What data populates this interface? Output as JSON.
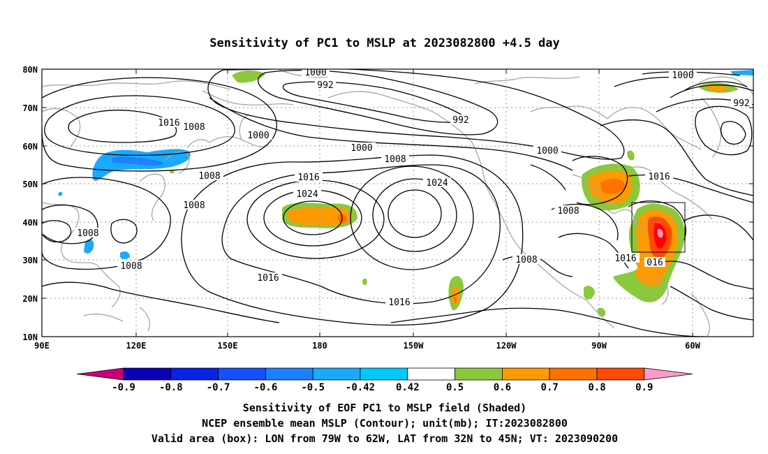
{
  "figure": {
    "title": "Sensitivity of PC1 to MSLP at 2023082800 +4.5 day",
    "caption_lines": [
      "Sensitivity of EOF PC1 to MSLP field (Shaded)",
      "NCEP ensemble mean MSLP (Contour); unit(mb); IT:2023082800",
      "Valid area (box): LON from 79W to 62W, LAT from 32N to 45N; VT: 2023090200"
    ]
  },
  "map": {
    "lat_ticks": [
      "80N",
      "70N",
      "60N",
      "50N",
      "40N",
      "30N",
      "20N",
      "10N"
    ],
    "lon_ticks": [
      "90E",
      "120E",
      "150E",
      "180",
      "150W",
      "120W",
      "90W",
      "60W"
    ],
    "contour_labels": [
      "1000",
      "992",
      "1000",
      "992",
      "1016",
      "1008",
      "1000",
      "992",
      "1000",
      "1008",
      "1000",
      "1016",
      "1016",
      "1024",
      "1024",
      "1008",
      "1008",
      "1008",
      "1008",
      "1016",
      "1008",
      "1016",
      "1016",
      "016"
    ],
    "valid_box": {
      "lon": "79W to 62W",
      "lat": "32N to 45N"
    },
    "colors": {
      "coast": "#a6a6a6",
      "grid": "#9a9a9a",
      "contour": "#000000"
    }
  },
  "colorbar": {
    "labels": [
      "-0.9",
      "-0.8",
      "-0.7",
      "-0.6",
      "-0.5",
      "-0.42",
      "0.42",
      "0.5",
      "0.6",
      "0.7",
      "0.8",
      "0.9"
    ],
    "colors": [
      "#c8007a",
      "#0a00b8",
      "#0a22e6",
      "#1450ff",
      "#1e80ff",
      "#19aaff",
      "#00c8ff",
      "#ffffff",
      "#8cc83c",
      "#ff9a00",
      "#ff7200",
      "#ff4a00",
      "#ff0000",
      "#ff9ac8"
    ]
  }
}
